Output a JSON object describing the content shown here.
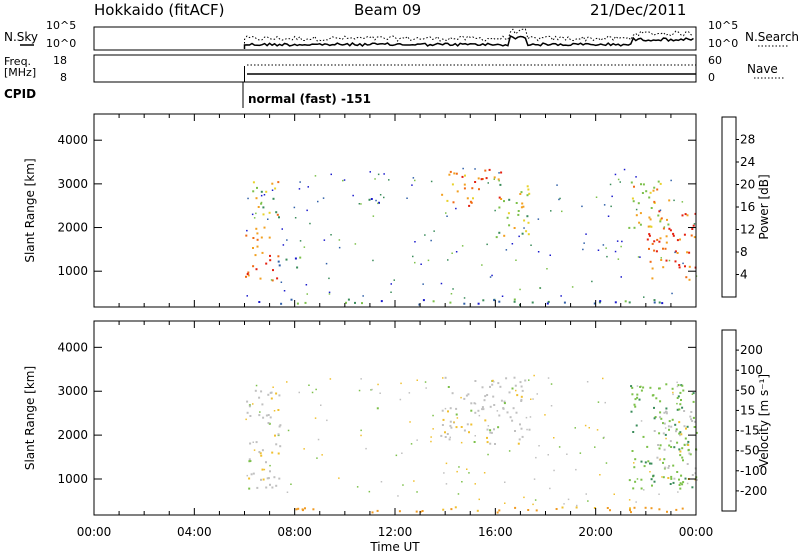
{
  "header": {
    "station": "Hokkaido (fitACF)",
    "beam": "Beam 09",
    "date": "21/Dec/2011"
  },
  "top_panels": {
    "nsky_label": "N.Sky",
    "nsky_ticks": [
      "10^5",
      "10^0"
    ],
    "nsearch_label": "N.Search",
    "nsearch_ticks": [
      "10^5",
      "10^0"
    ],
    "freq_label_line1": "Freq.",
    "freq_label_line2": "[MHz]",
    "freq_ticks": [
      "18",
      "8"
    ],
    "nave_label": "Nave",
    "nave_ticks": [
      "60",
      "0"
    ],
    "cpid_label": "CPID",
    "cpid_text": "normal (fast) -151"
  },
  "colors": {
    "power_scale": [
      "#1a1acc",
      "#2f5fa8",
      "#3a8c5a",
      "#7cc04a",
      "#e8d22a",
      "#f2a020",
      "#f06a14",
      "#e42010"
    ],
    "velocity_scale": [
      "#e81818",
      "#f05a14",
      "#f09a20",
      "#f0c030",
      "#c0c0c0",
      "#7cc04a",
      "#3a8c5a",
      "#2f5fa8",
      "#1a1acc"
    ]
  },
  "chart_data": [
    {
      "type": "heatmap",
      "ylabel": "Slant Range [km]",
      "xlabel": "",
      "colorbar_label": "Power [dB]",
      "colorbar_ticks": [
        "4",
        "8",
        "12",
        "16",
        "20",
        "24",
        "28"
      ],
      "colorbar_range": [
        0,
        32
      ],
      "y_ticks": [
        "1000",
        "2000",
        "3000",
        "4000"
      ],
      "ylim": [
        180,
        4600
      ],
      "xlim_hours": [
        0,
        24
      ],
      "regions": [
        {
          "t": [
            6.0,
            7.4
          ],
          "r": [
            800,
            1500
          ],
          "level": 0.92
        },
        {
          "t": [
            6.0,
            7.0
          ],
          "r": [
            1500,
            2100
          ],
          "level": 0.7
        },
        {
          "t": [
            6.3,
            7.4
          ],
          "r": [
            2100,
            3100
          ],
          "level": 0.55
        },
        {
          "t": [
            7.3,
            8.2
          ],
          "r": [
            1100,
            1500
          ],
          "level": 0.25
        },
        {
          "t": [
            10.7,
            11.5
          ],
          "r": [
            2500,
            2700
          ],
          "level": 0.12
        },
        {
          "t": [
            13.8,
            15.3
          ],
          "r": [
            2500,
            3350
          ],
          "level": 0.75
        },
        {
          "t": [
            15.3,
            16.2
          ],
          "r": [
            2700,
            3350
          ],
          "level": 0.8
        },
        {
          "t": [
            16.0,
            17.4
          ],
          "r": [
            1800,
            3100
          ],
          "level": 0.45
        },
        {
          "t": [
            21.3,
            23.0
          ],
          "r": [
            2000,
            3200
          ],
          "level": 0.6
        },
        {
          "t": [
            22.0,
            24.0
          ],
          "r": [
            800,
            2400
          ],
          "level": 0.85
        },
        {
          "t": [
            6.5,
            23.8
          ],
          "r": [
            250,
            380
          ],
          "level": 0.3
        }
      ]
    },
    {
      "type": "heatmap",
      "ylabel": "Slant Range [km]",
      "xlabel": "Time UT",
      "colorbar_label": "Velocity [m s⁻¹]",
      "colorbar_ticks": [
        "-200",
        "-100",
        "-50",
        "-15",
        "15",
        "50",
        "100",
        "200"
      ],
      "colorbar_range": [
        -250,
        250
      ],
      "y_ticks": [
        "1000",
        "2000",
        "3000",
        "4000"
      ],
      "ylim": [
        180,
        4600
      ],
      "xlim_hours": [
        0,
        24
      ],
      "x_ticks": [
        "00:00",
        "04:00",
        "08:00",
        "12:00",
        "16:00",
        "20:00",
        "00:00"
      ],
      "regions": [
        {
          "t": [
            6.0,
            7.4
          ],
          "r": [
            800,
            3100
          ],
          "value": 0
        },
        {
          "t": [
            6.0,
            7.0
          ],
          "r": [
            1000,
            1300
          ],
          "value": -20
        },
        {
          "t": [
            10.9,
            11.3
          ],
          "r": [
            2550,
            2700
          ],
          "value": 40
        },
        {
          "t": [
            13.8,
            17.4
          ],
          "r": [
            1800,
            3350
          ],
          "value": 0
        },
        {
          "t": [
            21.3,
            24.0
          ],
          "r": [
            800,
            3200
          ],
          "value": 40
        },
        {
          "t": [
            22.3,
            24.0
          ],
          "r": [
            800,
            2600
          ],
          "value": 0
        },
        {
          "t": [
            6.5,
            23.8
          ],
          "r": [
            250,
            380
          ],
          "value": -60
        }
      ]
    }
  ]
}
